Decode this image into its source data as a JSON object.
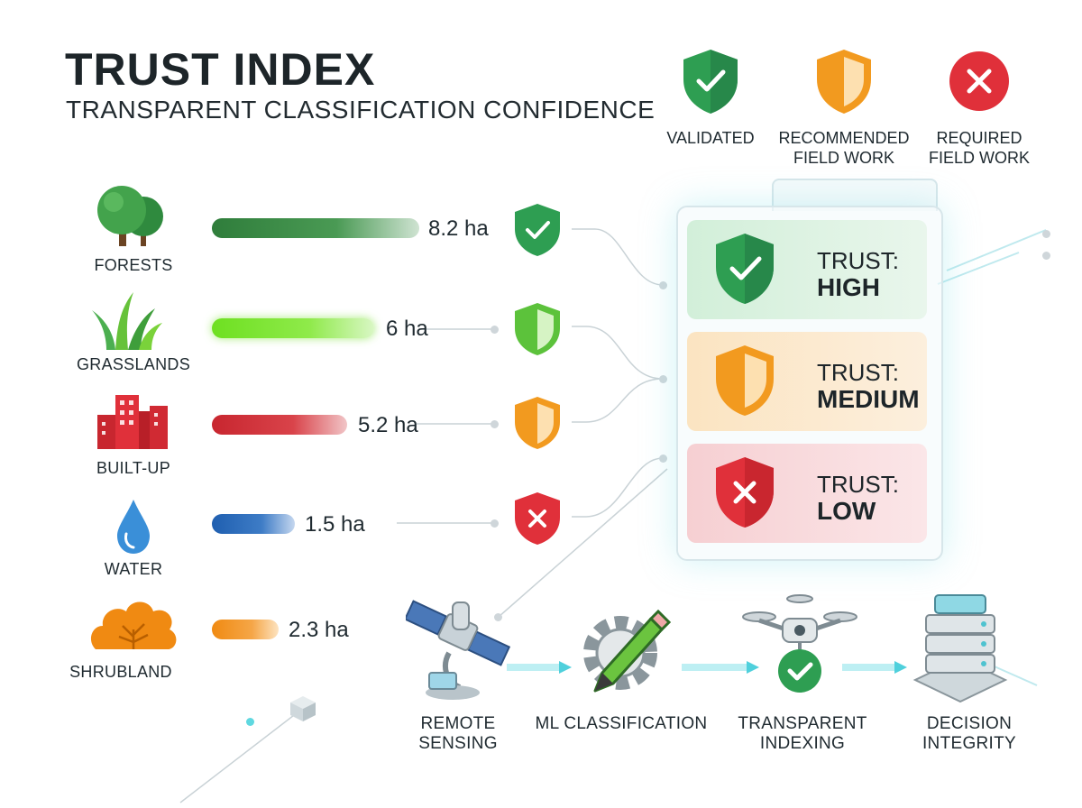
{
  "title": "TRUST INDEX",
  "subtitle": "TRANSPARENT CLASSIFICATION CONFIDENCE",
  "legend": [
    {
      "line1": "VALIDATED",
      "line2": "",
      "icon": "check-shield-icon",
      "color": "#2e9e52"
    },
    {
      "line1": "RECOMMENDED",
      "line2": "FIELD WORK",
      "icon": "half-shield-icon",
      "color": "#f29a1f"
    },
    {
      "line1": "REQUIRED",
      "line2": "FIELD WORK",
      "icon": "x-circle-icon",
      "color": "#e0303a"
    }
  ],
  "categories": [
    {
      "label": "FORESTS",
      "value": "8.2 ha",
      "bar_color": "#2f7d3b",
      "icon": "tree-icon",
      "status": "validated"
    },
    {
      "label": "GRASSLANDS",
      "value": "6 ha",
      "bar_color": "#6ee021",
      "icon": "grass-icon",
      "status": "recommended-green"
    },
    {
      "label": "BUILT-UP",
      "value": "5.2 ha",
      "bar_color": "#c8262f",
      "icon": "buildings-icon",
      "status": "recommended"
    },
    {
      "label": "WATER",
      "value": "1.5 ha",
      "bar_color": "#1f5fb0",
      "icon": "water-drop-icon",
      "status": "required"
    },
    {
      "label": "SHRUBLAND",
      "value": "2.3 ha",
      "bar_color": "#f08a12",
      "icon": "shrub-icon",
      "status": "none"
    }
  ],
  "trust_levels": [
    {
      "prefix": "TRUST:",
      "level": "HIGH",
      "color": "#2e9e52"
    },
    {
      "prefix": "TRUST:",
      "level": "MEDIUM",
      "color": "#f29a1f"
    },
    {
      "prefix": "TRUST:",
      "level": "LOW",
      "color": "#e0303a"
    }
  ],
  "flow": [
    {
      "line1": "REMOTE",
      "line2": "SENSING",
      "icon": "satellite-icon"
    },
    {
      "line1": "ML CLASSIFICATION",
      "line2": "",
      "icon": "gear-pencil-icon"
    },
    {
      "line1": "TRANSPARENT",
      "line2": "INDEXING",
      "icon": "drone-icon"
    },
    {
      "line1": "DECISION",
      "line2": "INTEGRITY",
      "icon": "server-icon"
    }
  ]
}
